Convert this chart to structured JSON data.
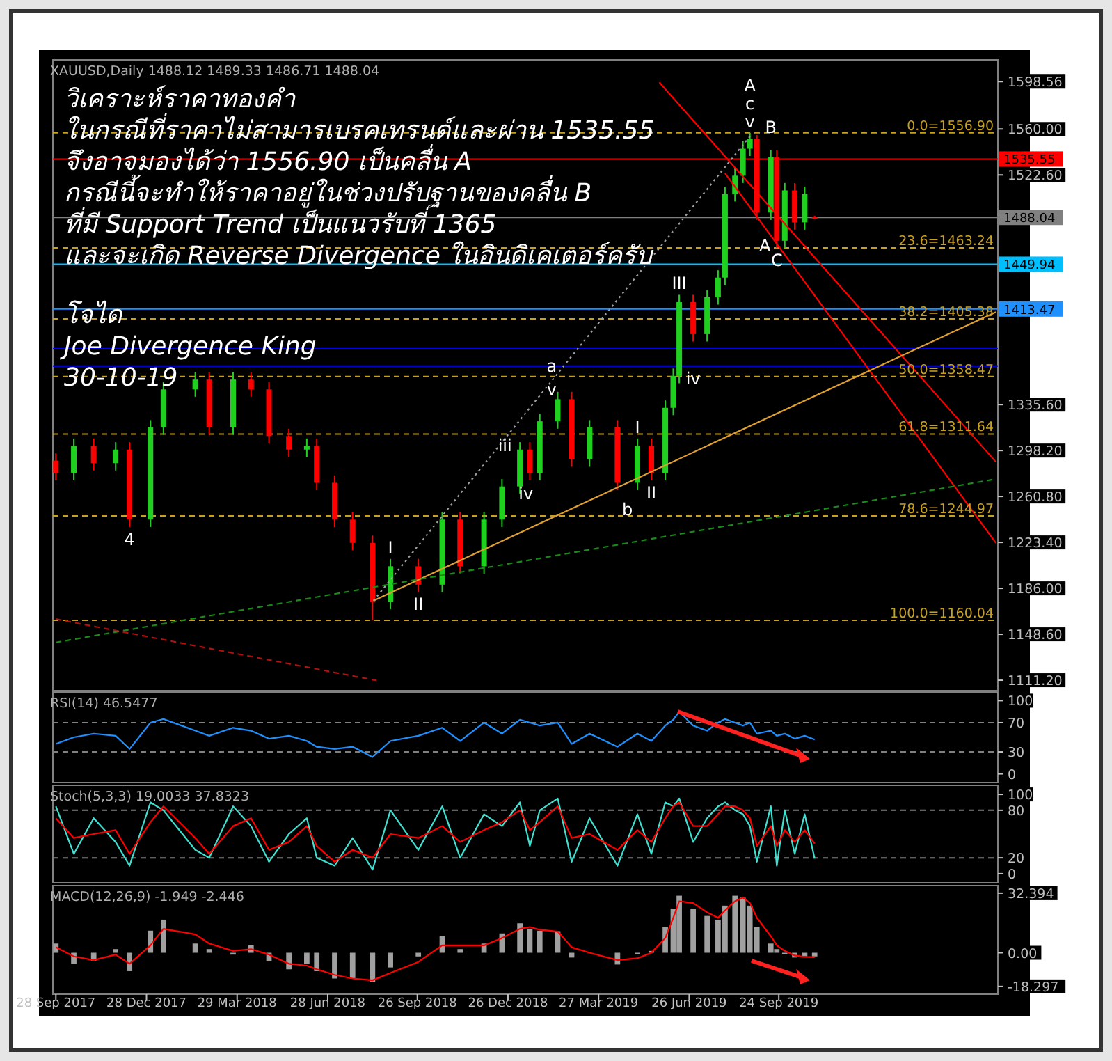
{
  "chart_data": [
    {
      "type": "candlestick",
      "title": "XAUUSD,Daily  1488.12 1489.33 1486.71 1488.04",
      "tick_labels": "y",
      "x": [
        "2017-09-28",
        "2017-10-16",
        "2017-11-05",
        "2017-11-27",
        "2017-12-11",
        "2018-01-01",
        "2018-01-14",
        "2018-02-15",
        "2018-03-01",
        "2018-03-25",
        "2018-04-12",
        "2018-04-30",
        "2018-05-20",
        "2018-06-07",
        "2018-06-17",
        "2018-07-05",
        "2018-07-23",
        "2018-08-12",
        "2018-08-30",
        "2018-09-27",
        "2018-10-21",
        "2018-11-08",
        "2018-12-02",
        "2018-12-20",
        "2019-01-07",
        "2019-01-17",
        "2019-01-27",
        "2019-02-14",
        "2019-02-28",
        "2019-03-18",
        "2019-04-15",
        "2019-05-05",
        "2019-05-19",
        "2019-06-02",
        "2019-06-10",
        "2019-06-16",
        "2019-06-30",
        "2019-07-14",
        "2019-07-25",
        "2019-08-01",
        "2019-08-11",
        "2019-08-19",
        "2019-08-26",
        "2019-09-02",
        "2019-09-16",
        "2019-09-22",
        "2019-09-30",
        "2019-10-10",
        "2019-10-20",
        "2019-10-30"
      ],
      "ohlc": [
        [
          1290,
          1296,
          1274,
          1280
        ],
        [
          1280,
          1308,
          1274,
          1302
        ],
        [
          1302,
          1308,
          1282,
          1288
        ],
        [
          1288,
          1305,
          1282,
          1299
        ],
        [
          1299,
          1305,
          1236,
          1242
        ],
        [
          1242,
          1323,
          1236,
          1317
        ],
        [
          1317,
          1354,
          1311,
          1348
        ],
        [
          1348,
          1362,
          1342,
          1356
        ],
        [
          1356,
          1362,
          1311,
          1317
        ],
        [
          1317,
          1362,
          1311,
          1356
        ],
        [
          1356,
          1362,
          1342,
          1348
        ],
        [
          1348,
          1354,
          1304,
          1310
        ],
        [
          1310,
          1316,
          1293,
          1299
        ],
        [
          1299,
          1308,
          1293,
          1302
        ],
        [
          1302,
          1308,
          1266,
          1272
        ],
        [
          1272,
          1278,
          1236,
          1242
        ],
        [
          1242,
          1248,
          1217,
          1223
        ],
        [
          1223,
          1229,
          1160.04,
          1175
        ],
        [
          1175,
          1210,
          1169,
          1204
        ],
        [
          1204,
          1210,
          1183,
          1189
        ],
        [
          1189,
          1248,
          1183,
          1242
        ],
        [
          1242,
          1248,
          1198,
          1204
        ],
        [
          1204,
          1248,
          1198,
          1242
        ],
        [
          1242,
          1275,
          1236,
          1269
        ],
        [
          1269,
          1305,
          1263,
          1299
        ],
        [
          1299,
          1305,
          1274,
          1280
        ],
        [
          1280,
          1328,
          1274,
          1322
        ],
        [
          1322,
          1346,
          1316,
          1340
        ],
        [
          1340,
          1346,
          1285,
          1291
        ],
        [
          1291,
          1323,
          1285,
          1317
        ],
        [
          1317,
          1323,
          1266,
          1272
        ],
        [
          1272,
          1308,
          1266,
          1302
        ],
        [
          1302,
          1308,
          1274,
          1280
        ],
        [
          1280,
          1339,
          1274,
          1333
        ],
        [
          1333,
          1365,
          1327,
          1359
        ],
        [
          1359,
          1425,
          1353,
          1419
        ],
        [
          1419,
          1425,
          1387,
          1393
        ],
        [
          1393,
          1429,
          1387,
          1423
        ],
        [
          1423,
          1445,
          1417,
          1439
        ],
        [
          1439,
          1513,
          1433,
          1507
        ],
        [
          1507,
          1528,
          1501,
          1522
        ],
        [
          1522,
          1550,
          1516,
          1544
        ],
        [
          1544,
          1556.9,
          1538,
          1552
        ],
        [
          1552,
          1555,
          1486,
          1492
        ],
        [
          1492,
          1543,
          1486,
          1537
        ],
        [
          1537,
          1543,
          1463,
          1469
        ],
        [
          1469,
          1516,
          1463,
          1510
        ],
        [
          1510,
          1516,
          1478,
          1484
        ],
        [
          1484,
          1513,
          1478,
          1507
        ],
        [
          1488.12,
          1489.33,
          1486.71,
          1488.04
        ]
      ],
      "colors": [
        "#ff0000",
        "#1fd01f",
        "#ff0000",
        "#1fd01f",
        "#ff0000",
        "#1fd01f",
        "#1fd01f",
        "#1fd01f",
        "#ff0000",
        "#1fd01f",
        "#ff0000",
        "#ff0000",
        "#ff0000",
        "#1fd01f",
        "#ff0000",
        "#ff0000",
        "#ff0000",
        "#ff0000",
        "#1fd01f",
        "#ff0000",
        "#1fd01f",
        "#ff0000",
        "#1fd01f",
        "#1fd01f",
        "#1fd01f",
        "#ff0000",
        "#1fd01f",
        "#1fd01f",
        "#ff0000",
        "#1fd01f",
        "#ff0000",
        "#1fd01f",
        "#ff0000",
        "#1fd01f",
        "#1fd01f",
        "#1fd01f",
        "#ff0000",
        "#1fd01f",
        "#1fd01f",
        "#1fd01f",
        "#1fd01f",
        "#1fd01f",
        "#1fd01f",
        "#ff0000",
        "#1fd01f",
        "#ff0000",
        "#1fd01f",
        "#ff0000",
        "#1fd01f",
        "#ff0000"
      ],
      "series": [
        {
          "type": "line",
          "color": "#ff0000",
          "line_style": "solid",
          "x": [
            "2019-05-27",
            "2020-04-29"
          ],
          "values": [
            1598,
            1289
          ]
        },
        {
          "type": "line",
          "color": "#ff0000",
          "line_style": "solid",
          "x": [
            "2019-08-01",
            "2020-04-29"
          ],
          "values": [
            1524,
            1223
          ]
        },
        {
          "type": "line",
          "color": "#e0a030",
          "line_style": "solid",
          "x": [
            "2018-08-13",
            "2020-04-29"
          ],
          "values": [
            1176,
            1411
          ]
        },
        {
          "type": "line",
          "color": "#1a8a1a",
          "line_style": "dashed",
          "x": [
            "2017-09-28",
            "2020-04-29"
          ],
          "values": [
            1142,
            1275
          ]
        },
        {
          "type": "line",
          "color": "#b01010",
          "line_style": "dashed",
          "x": [
            "2017-09-28",
            "2018-08-16"
          ],
          "values": [
            1161,
            1111
          ]
        },
        {
          "type": "line",
          "color": "#a0a0a0",
          "line_style": "dotted",
          "x": [
            "2018-08-13",
            "2019-08-28"
          ],
          "values": [
            1176,
            1556
          ]
        }
      ],
      "xlim": [
        "2017-09-25",
        "2020-05-01"
      ],
      "ylim": [
        1105,
        1614
      ],
      "yticks": [
        {
          "value": 1598.56,
          "label": "1598.56"
        },
        {
          "value": 1560,
          "label": "1560.00"
        },
        {
          "value": 1522.6,
          "label": "1522.60"
        },
        {
          "value": 1335.6,
          "label": "1335.60"
        },
        {
          "value": 1298.2,
          "label": "1298.20"
        },
        {
          "value": 1260.8,
          "label": "1260.80"
        },
        {
          "value": 1223.4,
          "label": "1223.40"
        },
        {
          "value": 1186,
          "label": "1186.00"
        },
        {
          "value": 1148.6,
          "label": "1148.60"
        },
        {
          "value": 1111.2,
          "label": "1111.20"
        }
      ],
      "ref_lines": [
        {
          "axis": "y",
          "value": 1556.9,
          "label": "0.0=1556.90",
          "color": "#c8a020",
          "line_style": "dashed"
        },
        {
          "axis": "y",
          "value": 1463.24,
          "label": "23.6=1463.24",
          "color": "#c8a020",
          "line_style": "dashed"
        },
        {
          "axis": "y",
          "value": 1405.38,
          "label": "38.2=1405.38",
          "color": "#c8a020",
          "line_style": "dashed"
        },
        {
          "axis": "y",
          "value": 1358.47,
          "label": "50.0=1358.47",
          "color": "#c8a020",
          "line_style": "dashed"
        },
        {
          "axis": "y",
          "value": 1311.64,
          "label": "61.8=1311.64",
          "color": "#c8a020",
          "line_style": "dashed"
        },
        {
          "axis": "y",
          "value": 1244.97,
          "label": "78.6=1244.97",
          "color": "#c8a020",
          "line_style": "dashed"
        },
        {
          "axis": "y",
          "value": 1160.04,
          "label": "100.0=1160.04",
          "color": "#c8a020",
          "line_style": "dashed"
        },
        {
          "axis": "y",
          "value": 1535.55,
          "label": "1535.55",
          "color": "#ff0000",
          "line_style": "solid"
        },
        {
          "axis": "y",
          "value": 1488.04,
          "label": "1488.04",
          "color": "#808080",
          "line_style": "solid"
        },
        {
          "axis": "y",
          "value": 1449.94,
          "label": "1449.94",
          "color": "#00bfff",
          "line_style": "solid"
        },
        {
          "axis": "y",
          "value": 1413.47,
          "label": "1413.47",
          "color": "#1e90ff",
          "line_style": "solid"
        },
        {
          "axis": "y",
          "value": 1381,
          "color": "#0000ff",
          "line_style": "solid"
        },
        {
          "axis": "y",
          "value": 1367,
          "color": "#0000ff",
          "line_style": "solid"
        }
      ],
      "annotations": [
        "วิเคราะห์ราคาทองคำ",
        "ในกรณีที่ราคาไม่สามารเบรคเทรนด์และผ่าน 1535.55",
        "จึงอาจมองได้ว่า 1556.90 เป็นคลื่น A",
        "กรณีนี้จะทำให้ราคาอยู่ในช่วงปรับฐานของคลื่น B",
        "ที่มี Support Trend เป็นแนวรับที่ 1365",
        "และจะเกิด Reverse Divergence ในอินดิเคเตอร์ครับ",
        "โจได",
        "Joe Divergence King",
        "30-10-19",
        {
          "text": "4",
          "x": "2017-12-11",
          "y": 1236
        },
        {
          "text": "I",
          "x": "2018-08-30",
          "y": 1210
        },
        {
          "text": "II",
          "x": "2018-09-27",
          "y": 1183
        },
        {
          "text": "iii",
          "x": "2018-12-23",
          "y": 1302
        },
        {
          "text": "iv",
          "x": "2019-01-13",
          "y": 1263
        },
        {
          "text": "a",
          "x": "2019-02-08",
          "y": 1367
        },
        {
          "text": "v",
          "x": "2019-02-08",
          "y": 1348
        },
        {
          "text": "I",
          "x": "2019-05-05",
          "y": 1308
        },
        {
          "text": "b",
          "x": "2019-04-25",
          "y": 1250
        },
        {
          "text": "II",
          "x": "2019-05-19",
          "y": 1274
        },
        {
          "text": "III",
          "x": "2019-06-16",
          "y": 1425
        },
        {
          "text": "iv",
          "x": "2019-06-30",
          "y": 1367
        },
        {
          "text": "v",
          "x": "2019-08-26",
          "y": 1556.9
        },
        {
          "text": "c",
          "x": "2019-08-26",
          "y": 1556.9
        },
        {
          "text": "A",
          "x": "2019-08-26",
          "y": 1556.9
        },
        {
          "text": "B",
          "x": "2019-09-16",
          "y": 1552
        },
        {
          "text": "A",
          "x": "2019-09-10",
          "y": 1465
        },
        {
          "text": "C",
          "x": "2019-09-22",
          "y": 1463
        }
      ]
    },
    {
      "type": "line",
      "title": "RSI(14) 46.5477",
      "tick_labels": "y",
      "x": [
        "2017-09-28",
        "2017-10-16",
        "2017-11-05",
        "2017-11-27",
        "2017-12-11",
        "2018-01-01",
        "2018-01-14",
        "2018-02-15",
        "2018-03-01",
        "2018-03-25",
        "2018-04-12",
        "2018-04-30",
        "2018-05-20",
        "2018-06-07",
        "2018-06-17",
        "2018-07-05",
        "2018-07-23",
        "2018-08-12",
        "2018-08-30",
        "2018-09-27",
        "2018-10-21",
        "2018-11-08",
        "2018-12-02",
        "2018-12-20",
        "2019-01-07",
        "2019-01-17",
        "2019-01-27",
        "2019-02-14",
        "2019-02-28",
        "2019-03-18",
        "2019-04-15",
        "2019-05-05",
        "2019-05-19",
        "2019-06-02",
        "2019-06-10",
        "2019-06-16",
        "2019-06-30",
        "2019-07-14",
        "2019-07-25",
        "2019-08-01",
        "2019-08-11",
        "2019-08-19",
        "2019-08-26",
        "2019-09-02",
        "2019-09-16",
        "2019-09-22",
        "2019-09-30",
        "2019-10-10",
        "2019-10-20",
        "2019-10-30"
      ],
      "series": [
        {
          "color": "#1e90ff",
          "values": [
            41,
            50,
            55,
            52,
            34,
            70,
            75,
            59,
            52,
            63,
            59,
            48,
            52,
            45,
            37,
            34,
            37,
            23,
            45,
            52,
            63,
            45,
            70,
            55,
            74,
            70,
            66,
            70,
            41,
            55,
            37,
            55,
            45,
            66,
            74,
            85,
            66,
            59,
            70,
            75,
            70,
            66,
            70,
            55,
            59,
            52,
            55,
            48,
            52,
            47
          ]
        }
      ],
      "xlim": [
        "2017-09-25",
        "2020-05-01"
      ],
      "ylim": [
        -8,
        108
      ],
      "yticks": [
        0,
        30,
        70,
        100
      ],
      "ref_lines": [
        {
          "axis": "y",
          "value": 70,
          "color": "#808080",
          "line_style": "dashed"
        },
        {
          "axis": "y",
          "value": 30,
          "color": "#808080",
          "line_style": "dashed"
        }
      ]
    },
    {
      "type": "line",
      "title": "Stoch(5,3,3) 19.0033 37.8323",
      "tick_labels": "y",
      "x": [
        "2017-09-28",
        "2017-10-16",
        "2017-11-05",
        "2017-11-27",
        "2017-12-11",
        "2018-01-01",
        "2018-01-14",
        "2018-02-15",
        "2018-03-01",
        "2018-03-25",
        "2018-04-12",
        "2018-04-30",
        "2018-05-20",
        "2018-06-07",
        "2018-06-17",
        "2018-07-05",
        "2018-07-23",
        "2018-08-12",
        "2018-08-30",
        "2018-09-27",
        "2018-10-21",
        "2018-11-08",
        "2018-12-02",
        "2018-12-20",
        "2019-01-07",
        "2019-01-17",
        "2019-01-27",
        "2019-02-14",
        "2019-02-28",
        "2019-03-18",
        "2019-04-15",
        "2019-05-05",
        "2019-05-19",
        "2019-06-02",
        "2019-06-10",
        "2019-06-16",
        "2019-06-30",
        "2019-07-14",
        "2019-07-25",
        "2019-08-01",
        "2019-08-11",
        "2019-08-19",
        "2019-08-26",
        "2019-09-02",
        "2019-09-16",
        "2019-09-22",
        "2019-09-30",
        "2019-10-10",
        "2019-10-20",
        "2019-10-30"
      ],
      "series": [
        {
          "color": "#40e0d0",
          "values": [
            85,
            25,
            70,
            40,
            10,
            90,
            80,
            30,
            20,
            85,
            60,
            15,
            50,
            70,
            20,
            10,
            45,
            5,
            80,
            30,
            85,
            20,
            75,
            60,
            90,
            35,
            80,
            95,
            15,
            70,
            10,
            75,
            25,
            90,
            85,
            95,
            40,
            70,
            85,
            90,
            80,
            75,
            60,
            15,
            85,
            10,
            80,
            25,
            75,
            19
          ]
        },
        {
          "color": "#ff0000",
          "values": [
            70,
            45,
            50,
            55,
            25,
            65,
            85,
            45,
            25,
            60,
            70,
            30,
            40,
            60,
            35,
            15,
            30,
            20,
            50,
            45,
            60,
            40,
            55,
            65,
            80,
            55,
            65,
            85,
            45,
            50,
            30,
            55,
            40,
            70,
            85,
            90,
            60,
            60,
            75,
            85,
            85,
            80,
            70,
            35,
            60,
            35,
            55,
            40,
            55,
            38
          ]
        }
      ],
      "xlim": [
        "2017-09-25",
        "2020-05-01"
      ],
      "ylim": [
        -8,
        108
      ],
      "yticks": [
        0,
        20,
        80,
        100
      ],
      "ref_lines": [
        {
          "axis": "y",
          "value": 80,
          "color": "#808080",
          "line_style": "dashed"
        },
        {
          "axis": "y",
          "value": 20,
          "color": "#808080",
          "line_style": "dashed"
        }
      ]
    },
    {
      "type": "bar",
      "title": "MACD(12,26,9) -1.949 -2.446",
      "x": [
        "2017-09-28",
        "2017-10-16",
        "2017-11-05",
        "2017-11-27",
        "2017-12-11",
        "2018-01-01",
        "2018-01-14",
        "2018-02-15",
        "2018-03-01",
        "2018-03-25",
        "2018-04-12",
        "2018-04-30",
        "2018-05-20",
        "2018-06-07",
        "2018-06-17",
        "2018-07-05",
        "2018-07-23",
        "2018-08-12",
        "2018-08-30",
        "2018-09-27",
        "2018-10-21",
        "2018-11-08",
        "2018-12-02",
        "2018-12-20",
        "2019-01-07",
        "2019-01-17",
        "2019-01-27",
        "2019-02-14",
        "2019-02-28",
        "2019-03-18",
        "2019-04-15",
        "2019-05-05",
        "2019-05-19",
        "2019-06-02",
        "2019-06-10",
        "2019-06-16",
        "2019-06-30",
        "2019-07-14",
        "2019-07-25",
        "2019-08-01",
        "2019-08-11",
        "2019-08-19",
        "2019-08-26",
        "2019-09-02",
        "2019-09-16",
        "2019-09-22",
        "2019-09-30",
        "2019-10-10",
        "2019-10-20",
        "2019-10-30"
      ],
      "series": [
        {
          "color": "#a0a0a0",
          "values": [
            5,
            -6,
            -4.5,
            2,
            -10,
            12,
            18,
            5,
            2,
            -1,
            4,
            -4.5,
            -9,
            -6,
            -10,
            -14,
            -14,
            -16,
            -8,
            -2,
            9,
            2,
            5,
            10.5,
            16,
            13,
            12,
            11.7,
            -2.6,
            null,
            -6.4,
            -0.8,
            1,
            14,
            24,
            31,
            24,
            20,
            18,
            25.6,
            31,
            30,
            25.6,
            14,
            5,
            2,
            -0.8,
            -2.6,
            -1.9,
            -2
          ]
        },
        {
          "type": "line",
          "color": "#ff0000",
          "values": [
            3,
            -2,
            -4,
            -1,
            -6,
            4,
            13,
            10,
            5,
            1,
            2,
            -1,
            -6,
            -7,
            -9,
            -12,
            -14,
            -15,
            -11,
            -5,
            4,
            4,
            4,
            8,
            13,
            14,
            12.5,
            11.5,
            3,
            0,
            -4,
            -3,
            0,
            8,
            19,
            28,
            27,
            22,
            19,
            23,
            28,
            30,
            27,
            19,
            9,
            4,
            1,
            -1.5,
            -2.2,
            -2.4
          ]
        }
      ],
      "xlim": [
        "2017-09-25",
        "2020-05-01"
      ],
      "ylim": [
        -21,
        35
      ],
      "yticks": [
        32.394,
        {
          "value": 0,
          "label": "0.00"
        },
        -18.297
      ],
      "xticks": [
        {
          "value": "2017-09-28",
          "label": "28 Sep 2017"
        },
        {
          "value": "2017-12-28",
          "label": "28 Dec 2017"
        },
        {
          "value": "2018-03-29",
          "label": "29 Mar 2018"
        },
        {
          "value": "2018-06-28",
          "label": "28 Jun 2018"
        },
        {
          "value": "2018-09-26",
          "label": "26 Sep 2018"
        },
        {
          "value": "2018-12-26",
          "label": "26 Dec 2018"
        },
        {
          "value": "2019-03-27",
          "label": "27 Mar 2019"
        },
        {
          "value": "2019-06-26",
          "label": "26 Jun 2019"
        },
        {
          "value": "2019-09-24",
          "label": "24 Sep 2019"
        }
      ]
    }
  ]
}
